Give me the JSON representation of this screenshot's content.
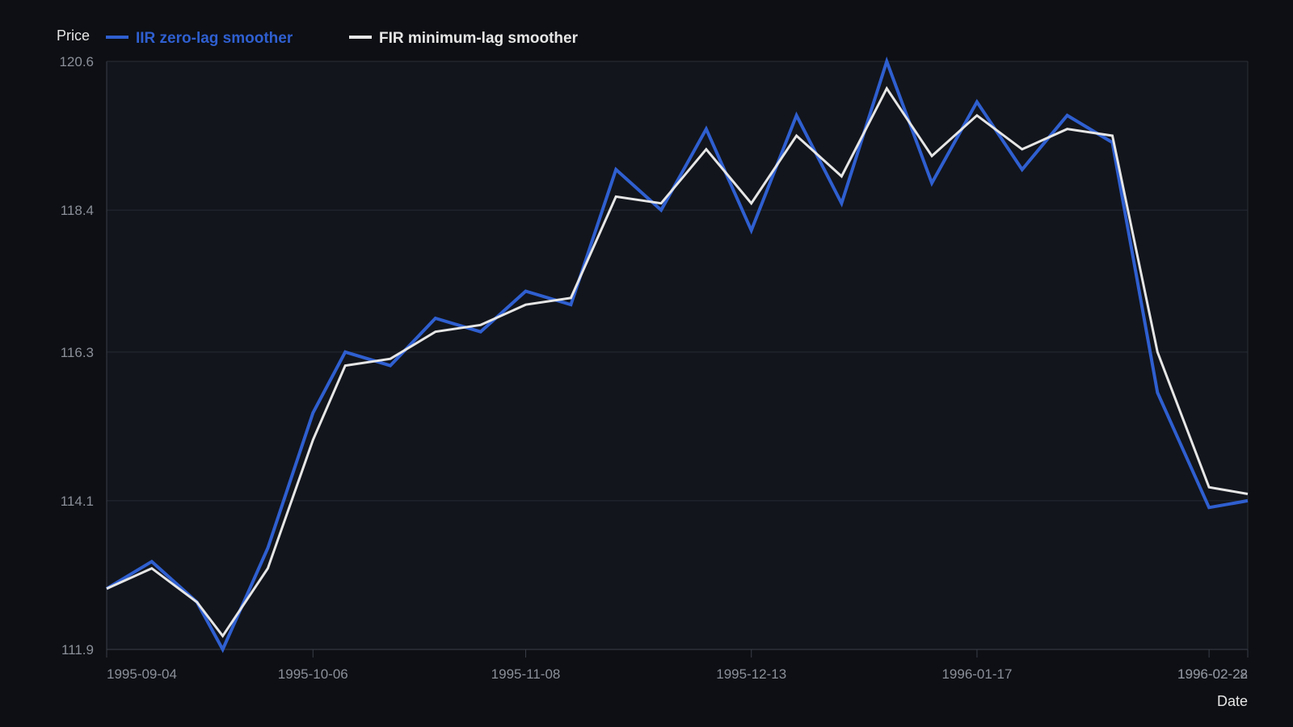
{
  "chart_data": {
    "type": "line",
    "ylabel": "Price",
    "xlabel": "Date",
    "ylim": [
      111.9,
      120.6
    ],
    "yticks": [
      "120.6",
      "118.4",
      "116.3",
      "114.1",
      "111.9"
    ],
    "x_range": [
      "1995-09-04",
      "1996-02-28"
    ],
    "xticks": [
      "1995-09-04",
      "1995-10-06",
      "1995-11-08",
      "1995-12-13",
      "1996-01-17",
      "1996-02-22",
      "1996-02-28"
    ],
    "grid": true,
    "legend_position": "top-left",
    "x": [
      "1995-09-04",
      "1995-09-11",
      "1995-09-18",
      "1995-09-22",
      "1995-09-29",
      "1995-10-06",
      "1995-10-11",
      "1995-10-18",
      "1995-10-25",
      "1995-11-01",
      "1995-11-08",
      "1995-11-15",
      "1995-11-22",
      "1995-11-29",
      "1995-12-06",
      "1995-12-13",
      "1995-12-20",
      "1995-12-27",
      "1996-01-03",
      "1996-01-10",
      "1996-01-17",
      "1996-01-24",
      "1996-01-31",
      "1996-02-07",
      "1996-02-14",
      "1996-02-22",
      "1996-02-28"
    ],
    "series": [
      {
        "name": "IIR zero-lag smoother",
        "color": "#2f5fd0",
        "values": [
          112.8,
          113.2,
          112.6,
          111.9,
          113.4,
          115.4,
          116.3,
          116.1,
          116.8,
          116.6,
          117.2,
          117.0,
          119.0,
          118.4,
          119.6,
          118.1,
          119.8,
          118.5,
          120.6,
          118.8,
          120.0,
          119.0,
          119.8,
          119.4,
          115.7,
          114.0,
          114.1
        ]
      },
      {
        "name": "FIR minimum-lag smoother",
        "color": "#e6e6e6",
        "values": [
          112.8,
          113.1,
          112.6,
          112.1,
          113.1,
          115.0,
          116.1,
          116.2,
          116.6,
          116.7,
          117.0,
          117.1,
          118.6,
          118.5,
          119.3,
          118.5,
          119.5,
          118.9,
          120.2,
          119.2,
          119.8,
          119.3,
          119.6,
          119.5,
          116.3,
          114.3,
          114.2
        ]
      }
    ]
  }
}
